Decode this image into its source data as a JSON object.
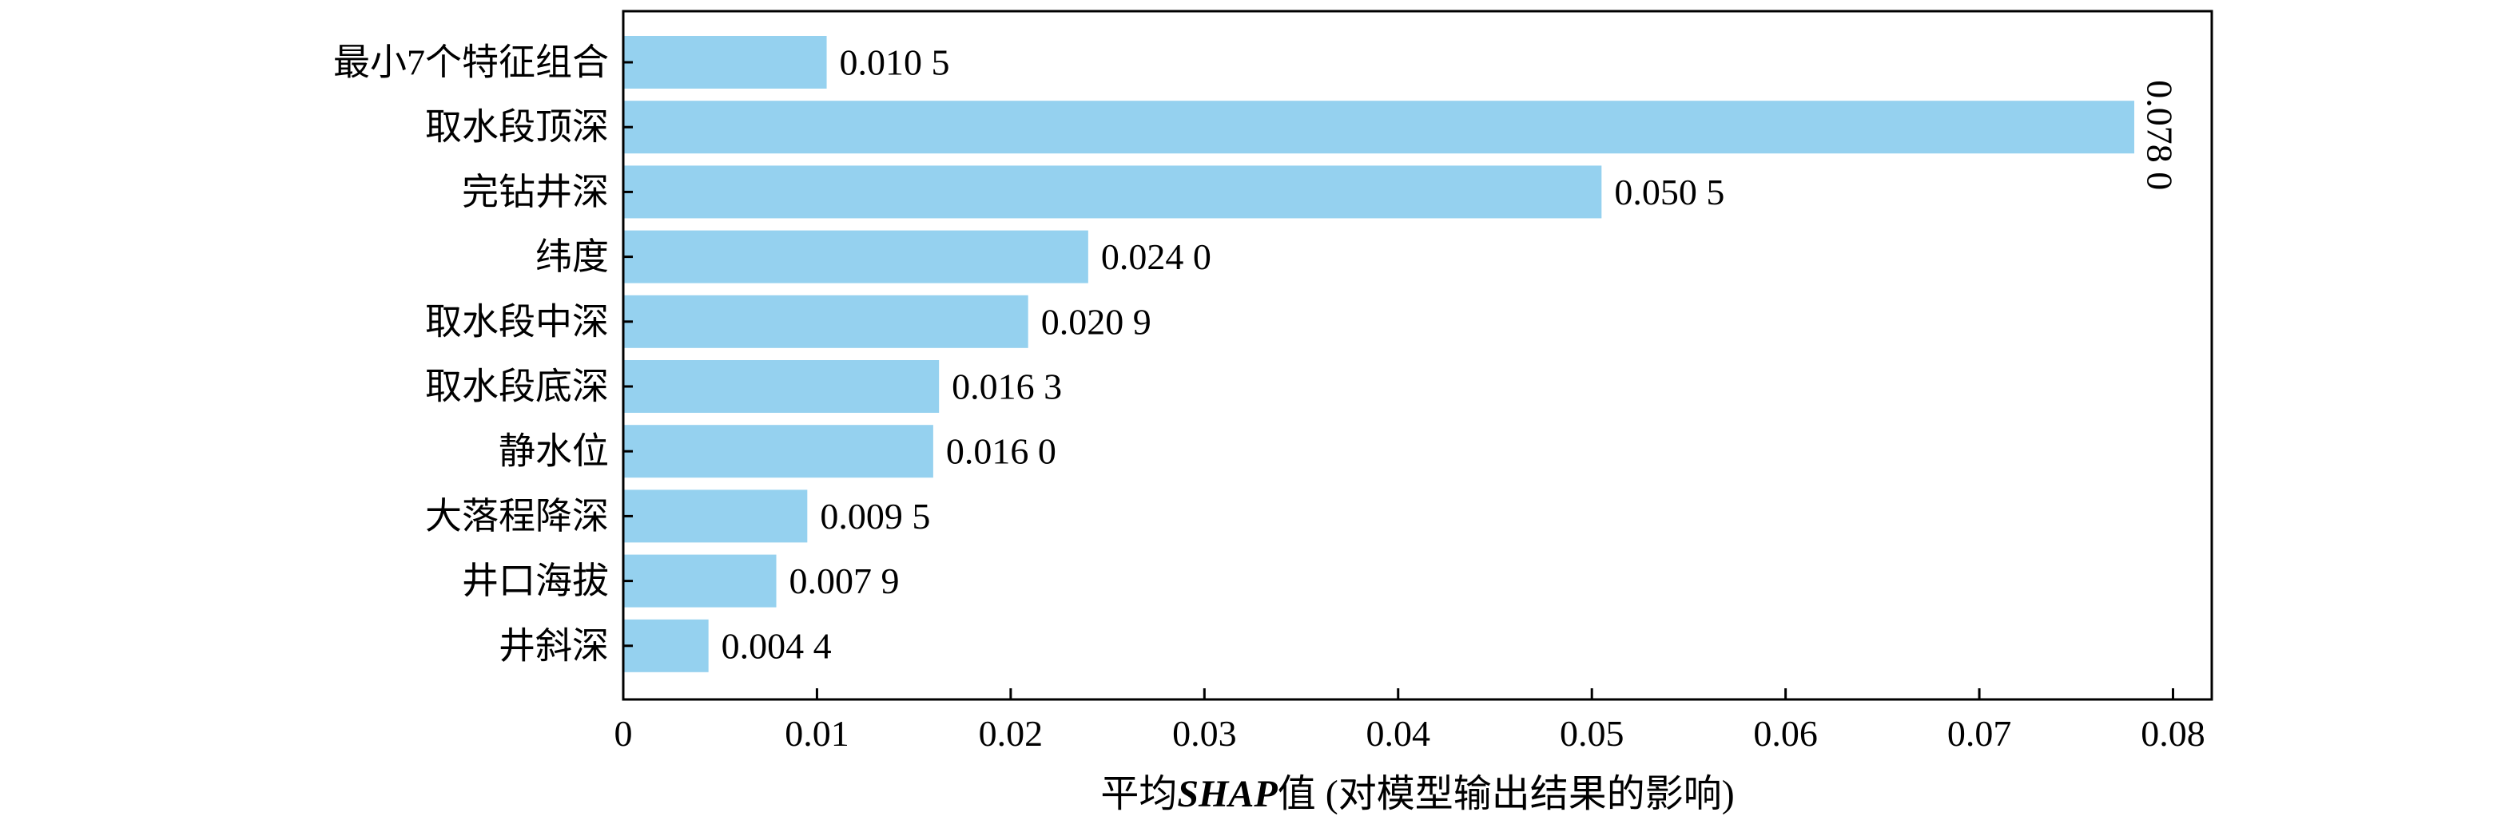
{
  "chart_data": {
    "type": "bar",
    "orientation": "horizontal",
    "categories": [
      "最小7个特征组合",
      "取水段顶深",
      "完钻井深",
      "纬度",
      "取水段中深",
      "取水段底深",
      "静水位",
      "大落程降深",
      "井口海拔",
      "井斜深"
    ],
    "values": [
      0.0105,
      0.078,
      0.0505,
      0.024,
      0.0209,
      0.0163,
      0.016,
      0.0095,
      0.0079,
      0.0044
    ],
    "value_labels": [
      "0.010 5",
      "0.078 0",
      "0.050 5",
      "0.024 0",
      "0.020 9",
      "0.016 3",
      "0.016 0",
      "0.009 5",
      "0.007 9",
      "0.004 4"
    ],
    "xlim": [
      0,
      0.082
    ],
    "xticks": [
      0,
      0.01,
      0.02,
      0.03,
      0.04,
      0.05,
      0.06,
      0.07,
      0.08
    ],
    "xtick_labels": [
      "0",
      "0.01",
      "0.02",
      "0.03",
      "0.04",
      "0.05",
      "0.06",
      "0.07",
      "0.08"
    ],
    "xlabel_prefix": "平均",
    "xlabel_emph": "SHAP",
    "xlabel_suffix": "值 (对模型输出结果的影响)",
    "ylabel": "",
    "title": "",
    "grid": false,
    "bar_color": "#95d1ef"
  }
}
